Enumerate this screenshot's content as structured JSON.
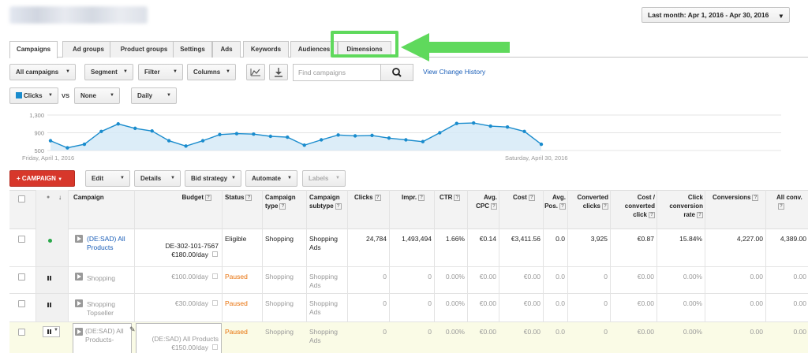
{
  "date_range": "Last month: Apr 1, 2016 - Apr 30, 2016",
  "tabs": [
    "Campaigns",
    "Ad groups",
    "Product groups",
    "Settings",
    "Ads",
    "Keywords",
    "Audiences",
    "Dimensions"
  ],
  "toolbar": {
    "all_campaigns": "All campaigns",
    "segment": "Segment",
    "filter": "Filter",
    "columns": "Columns",
    "search_placeholder": "Find campaigns",
    "view_history": "View Change History"
  },
  "metric": {
    "primary": "Clicks",
    "vs": "VS",
    "secondary": "None",
    "granularity": "Daily"
  },
  "chart_data": {
    "type": "area",
    "ylim": [
      500,
      1300
    ],
    "yticks": [
      "1,300",
      "900",
      "500"
    ],
    "start_label": "Friday, April 1, 2016",
    "end_label": "Saturday, April 30, 2016",
    "values": [
      720,
      560,
      640,
      930,
      1100,
      1000,
      940,
      720,
      600,
      720,
      860,
      880,
      870,
      820,
      800,
      620,
      740,
      850,
      830,
      840,
      780,
      740,
      700,
      900,
      1110,
      1120,
      1050,
      1030,
      930,
      640
    ],
    "series": [
      {
        "name": "Clicks",
        "color": "#1a8ccd"
      }
    ]
  },
  "actions": {
    "campaign": "+ CAMPAIGN",
    "edit": "Edit",
    "details": "Details",
    "bid_strategy": "Bid strategy",
    "automate": "Automate",
    "labels": "Labels"
  },
  "headers": {
    "campaign": "Campaign",
    "budget": "Budget",
    "status": "Status",
    "campaign_type": "Campaign type",
    "campaign_subtype": "Campaign subtype",
    "clicks": "Clicks",
    "impr": "Impr.",
    "ctr": "CTR",
    "avg_cpc": "Avg. CPC",
    "cost": "Cost",
    "avg_pos": "Avg. Pos.",
    "converted_clicks": "Converted clicks",
    "cost_converted_click": "Cost / converted click",
    "click_conversion_rate": "Click conversion rate",
    "conversions": "Conversions",
    "all_conv": "All conv."
  },
  "rows": [
    {
      "campaign": "(DE:SAD) All Products",
      "budget_id": "DE-302-101-7567",
      "budget": "€180.00/day",
      "status": "Eligible",
      "type": "Shopping",
      "subtype": "Shopping Ads",
      "clicks": "24,784",
      "impr": "1,493,494",
      "ctr": "1.66%",
      "cpc": "€0.14",
      "cost": "€3,411.56",
      "pos": "0.0",
      "conv_clicks": "3,925",
      "cost_conv": "€0.87",
      "conv_rate": "15.84%",
      "conversions": "4,227.00",
      "all_conv": "4,389.00"
    },
    {
      "campaign": "Shopping",
      "budget": "€100.00/day",
      "status": "Paused",
      "type": "Shopping",
      "subtype": "Shopping Ads",
      "clicks": "0",
      "impr": "0",
      "ctr": "0.00%",
      "cpc": "€0.00",
      "cost": "€0.00",
      "pos": "0.0",
      "conv_clicks": "0",
      "cost_conv": "€0.00",
      "conv_rate": "0.00%",
      "conversions": "0.00",
      "all_conv": "0.00"
    },
    {
      "campaign": "Shopping Topseller",
      "budget": "€30.00/day",
      "status": "Paused",
      "type": "Shopping",
      "subtype": "Shopping Ads",
      "clicks": "0",
      "impr": "0",
      "ctr": "0.00%",
      "cpc": "€0.00",
      "cost": "€0.00",
      "pos": "0.0",
      "conv_clicks": "0",
      "cost_conv": "€0.00",
      "conv_rate": "0.00%",
      "conversions": "0.00",
      "all_conv": "0.00"
    },
    {
      "campaign": "(DE:SAD) All Products-",
      "budget_id": "(DE:SAD) All Products",
      "budget": "€150.00/day",
      "status": "Paused",
      "type": "Shopping",
      "subtype": "Shopping Ads",
      "clicks": "0",
      "impr": "0",
      "ctr": "0.00%",
      "cpc": "€0.00",
      "cost": "€0.00",
      "pos": "0.0",
      "conv_clicks": "0",
      "cost_conv": "€0.00",
      "conv_rate": "0.00%",
      "conversions": "0.00",
      "all_conv": "0.00"
    }
  ]
}
